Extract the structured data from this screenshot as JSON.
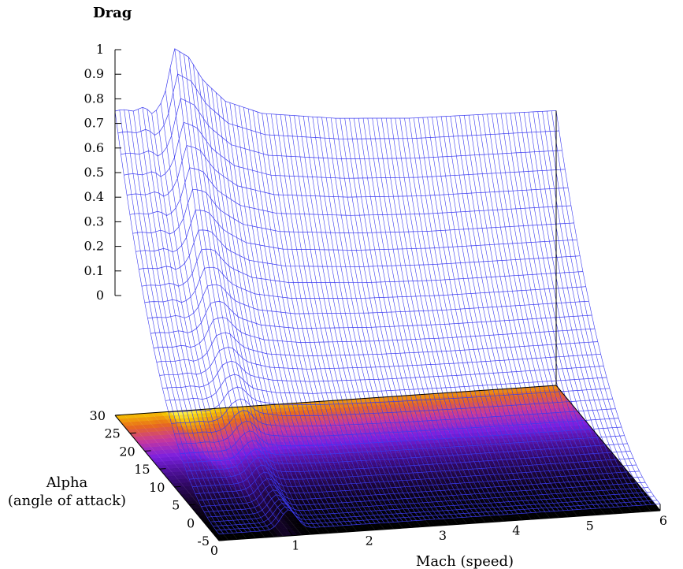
{
  "chart_data": {
    "type": "surface3d",
    "title": "",
    "zlabel": "Drag",
    "ylabel_line1": "Alpha",
    "ylabel_line2": "(angle of attack)",
    "xlabel": "Mach (speed)",
    "x_ticks": [
      "0",
      "1",
      "2",
      "3",
      "4",
      "5",
      "6"
    ],
    "y_ticks": [
      "-5",
      "0",
      "5",
      "10",
      "15",
      "20",
      "25",
      "30"
    ],
    "z_ticks": [
      "0",
      "0.1",
      "0.2",
      "0.3",
      "0.4",
      "0.5",
      "0.6",
      "0.7",
      "0.8",
      "0.9",
      "1"
    ],
    "xlim": [
      0,
      6
    ],
    "ylim": [
      -5,
      30
    ],
    "zlim": [
      0,
      1
    ],
    "grid_x_samples": 97,
    "grid_y_samples": 36,
    "mesh_color": "#3a3af0",
    "heatmap_palette": [
      "#000000",
      "#3b0a7a",
      "#7a1fe0",
      "#c8389a",
      "#e86a1a",
      "#f5c400",
      "#ffff60"
    ],
    "profile_at_max_alpha": {
      "mach": [
        0,
        0.1,
        0.25,
        0.4,
        0.5,
        0.6,
        0.7,
        0.8,
        0.9,
        1.0,
        1.1,
        1.2,
        1.5,
        2.0,
        3.0,
        4.0,
        5.0,
        6.0
      ],
      "drag": [
        0.75,
        0.755,
        0.745,
        0.76,
        0.73,
        0.75,
        0.83,
        0.99,
        0.97,
        0.95,
        0.9,
        0.85,
        0.76,
        0.7,
        0.66,
        0.64,
        0.635,
        0.63
      ]
    }
  }
}
